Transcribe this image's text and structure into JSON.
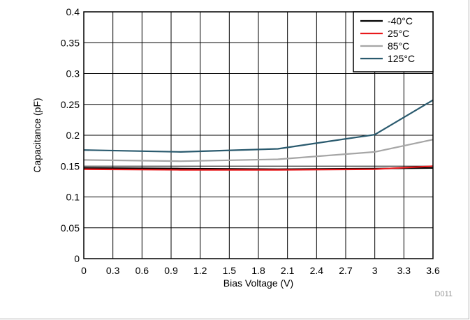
{
  "chart_data": {
    "type": "line",
    "title": "",
    "xlabel": "Bias Voltage (V)",
    "ylabel": "Capacitance (pF)",
    "xlim": [
      0,
      3.6
    ],
    "ylim": [
      0,
      0.4
    ],
    "x_ticks": [
      "0",
      "0.3",
      "0.6",
      "0.9",
      "1.2",
      "1.5",
      "1.8",
      "2.1",
      "2.4",
      "2.7",
      "3",
      "3.3",
      "3.6"
    ],
    "y_ticks": [
      "0",
      "0.05",
      "0.1",
      "0.15",
      "0.2",
      "0.25",
      "0.3",
      "0.35",
      "0.4"
    ],
    "grid": true,
    "legend": "top-right",
    "series": [
      {
        "name": "-40°C",
        "color": "#000000",
        "x": [
          0,
          1,
          2,
          3,
          3.6
        ],
        "y": [
          0.147,
          0.146,
          0.145,
          0.146,
          0.147
        ]
      },
      {
        "name": "25°C",
        "color": "#e8191c",
        "x": [
          0,
          1,
          2,
          3,
          3.6
        ],
        "y": [
          0.145,
          0.144,
          0.144,
          0.145,
          0.15
        ]
      },
      {
        "name": "85°C",
        "color": "#a6a6a6",
        "x": [
          0,
          1,
          2,
          3,
          3.6
        ],
        "y": [
          0.16,
          0.158,
          0.161,
          0.173,
          0.193
        ]
      },
      {
        "name": "125°C",
        "color": "#2a5a6e",
        "x": [
          0,
          1,
          2,
          3,
          3.6
        ],
        "y": [
          0.176,
          0.173,
          0.178,
          0.201,
          0.257
        ]
      }
    ],
    "figure_id": "D011"
  }
}
